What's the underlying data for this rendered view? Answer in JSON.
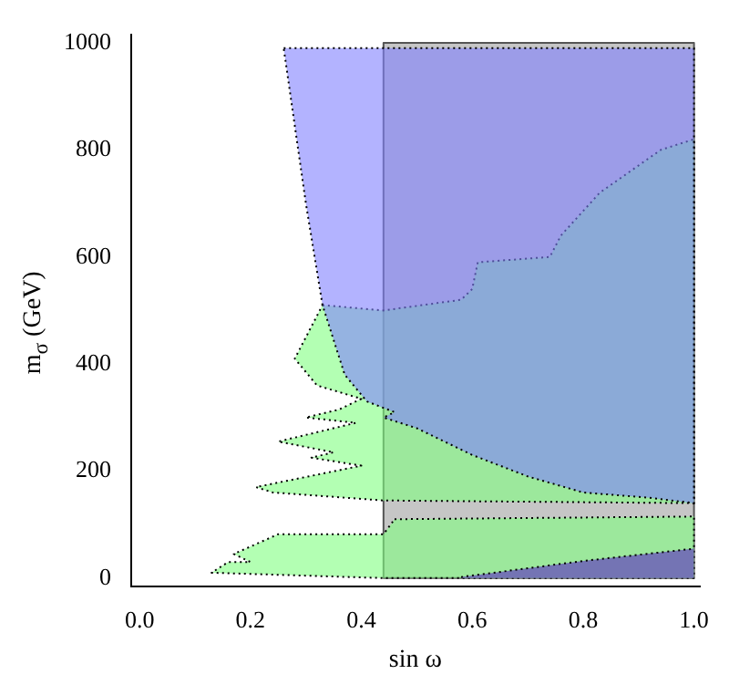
{
  "chart_data": {
    "type": "area",
    "xlabel": "sin ω",
    "ylabel": "m$_{σ}$ (GeV)",
    "xlim": [
      -0.015,
      1.01
    ],
    "ylim": [
      -16,
      1016
    ],
    "xticks": [
      {
        "value": 0,
        "label": "0.0"
      },
      {
        "value": 0.2,
        "label": "0.2"
      },
      {
        "value": 0.4,
        "label": "0.4"
      },
      {
        "value": 0.6,
        "label": "0.6"
      },
      {
        "value": 0.8,
        "label": "0.8"
      },
      {
        "value": 1,
        "label": "1.0"
      }
    ],
    "yticks": [
      0,
      200,
      400,
      600,
      800,
      1000
    ],
    "grid": false,
    "legend": false,
    "line_style": "dotted",
    "marker": "none",
    "series": [
      {
        "color": "#8080ff",
        "x": [
          0.26,
          1,
          1,
          0.92,
          0.8,
          0.7,
          0.6,
          0.5,
          0.44,
          0.46,
          0.41,
          0.37,
          0.33,
          0.3,
          0.26
        ],
        "values": [
          990,
          990,
          140,
          150,
          160,
          190,
          230,
          280,
          300,
          310,
          330,
          380,
          510,
          700,
          990
        ]
      },
      {
        "color": "#7474b4",
        "x": [
          0.58,
          0.8,
          1
        ],
        "values": [
          2,
          32,
          55
        ]
      },
      {
        "color": "#80ff80",
        "x": [
          0.33,
          0.44,
          0.58,
          0.6,
          0.61,
          0.74,
          0.76,
          0.83,
          0.94,
          1,
          1,
          0.44,
          0.24,
          0.21,
          0.4,
          0.31,
          0.35,
          0.25,
          0.39,
          0.3,
          0.36,
          0.4,
          0.32,
          0.28,
          0.33
        ],
        "values": [
          510,
          500,
          520,
          540,
          590,
          600,
          640,
          720,
          800,
          820,
          140,
          145,
          160,
          170,
          210,
          225,
          235,
          255,
          290,
          300,
          315,
          335,
          360,
          410,
          510
        ]
      },
      {
        "color": "#80ff80",
        "x": [
          0.46,
          1,
          1,
          0.44,
          0.13,
          0.16,
          0.2,
          0.17,
          0.25,
          0.44,
          0.46
        ],
        "values": [
          110,
          115,
          0,
          0,
          10,
          30,
          30,
          45,
          82,
          82,
          110
        ]
      },
      {
        "color": "#808080",
        "x": [
          0.44,
          1,
          1,
          0.44,
          0.44
        ],
        "values": [
          0,
          0,
          1000,
          1000,
          0
        ]
      }
    ]
  }
}
